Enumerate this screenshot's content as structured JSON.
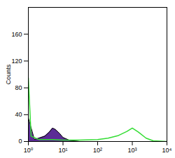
{
  "chart_data": {
    "type": "histogram",
    "log": "x",
    "ylabel": "Counts",
    "xlim": [
      1,
      10000
    ],
    "xticks": [
      {
        "value": 1,
        "label": "10⁰"
      },
      {
        "value": 10,
        "label": "10¹"
      },
      {
        "value": 100,
        "label": "10²"
      },
      {
        "value": 1000,
        "label": "10³"
      },
      {
        "value": 10000,
        "label": "10⁴"
      }
    ],
    "ylim": [
      0,
      200
    ],
    "yticks": [
      0,
      40,
      80,
      120,
      160
    ],
    "series": [
      {
        "type": "area",
        "color": "#5b2c96",
        "x": [
          1,
          1.5,
          2,
          3,
          4,
          5,
          6,
          8,
          10,
          15,
          20,
          30
        ],
        "values": [
          35,
          3,
          5,
          8,
          14,
          20,
          18,
          12,
          6,
          2,
          1,
          0
        ]
      },
      {
        "type": "line",
        "color": "#33dd33",
        "x": [
          1,
          1.2,
          2,
          5,
          10,
          30,
          100,
          200,
          400,
          700,
          1000,
          1500,
          2500,
          4000,
          10000
        ],
        "values": [
          95,
          8,
          3,
          3,
          2,
          2,
          3,
          5,
          9,
          15,
          20,
          14,
          5,
          1,
          0
        ]
      }
    ]
  }
}
